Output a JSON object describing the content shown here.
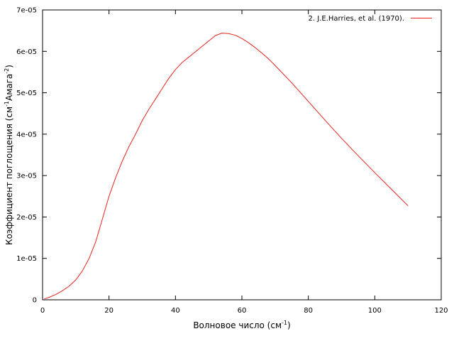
{
  "chart_data": {
    "type": "line",
    "xlabel": {
      "main": "Волновое число (см",
      "sup": "-1",
      "tail": ")"
    },
    "ylabel": {
      "main": "Коэффициент поглощения (см",
      "sup1": "-1",
      "mid": "Амага",
      "sup2": "-2",
      "tail": ")"
    },
    "xlim": [
      0,
      120
    ],
    "ylim": [
      0,
      7e-05
    ],
    "x_ticks": [
      0,
      20,
      40,
      60,
      80,
      100,
      120
    ],
    "y_ticks": [
      0,
      1e-05,
      2e-05,
      3e-05,
      4e-05,
      5e-05,
      6e-05,
      7e-05
    ],
    "x_tick_labels": [
      "0",
      "20",
      "40",
      "60",
      "80",
      "100",
      "120"
    ],
    "y_tick_labels": [
      "0",
      "1e-05",
      "2e-05",
      "3e-05",
      "4e-05",
      "5e-05",
      "6e-05",
      "7e-05"
    ],
    "grid": false,
    "legend_position": "top-right",
    "series": [
      {
        "name": "2. J.E.Harries, et al. (1970).",
        "color": "#e8251e",
        "x": [
          0.5,
          2,
          4,
          6,
          8,
          10,
          12,
          14,
          16,
          18,
          20,
          22,
          24,
          26,
          28,
          30,
          32,
          34,
          36,
          38,
          40,
          42,
          44,
          46,
          48,
          50,
          52,
          54,
          56,
          58,
          60,
          62,
          64,
          66,
          68,
          70,
          72,
          75,
          80,
          85,
          90,
          95,
          100,
          105,
          110
        ],
        "y": [
          2e-07,
          6e-07,
          1.3e-06,
          2.2e-06,
          3.3e-06,
          4.8e-06,
          7e-06,
          1e-05,
          1.4e-05,
          1.95e-05,
          2.5e-05,
          2.95e-05,
          3.35e-05,
          3.7e-05,
          4e-05,
          4.33e-05,
          4.6e-05,
          4.85e-05,
          5.1e-05,
          5.35e-05,
          5.56e-05,
          5.73e-05,
          5.86e-05,
          5.99e-05,
          6.12e-05,
          6.25e-05,
          6.38e-05,
          6.44e-05,
          6.43e-05,
          6.39e-05,
          6.31e-05,
          6.21e-05,
          6.09e-05,
          5.96e-05,
          5.82e-05,
          5.66e-05,
          5.49e-05,
          5.24e-05,
          4.79e-05,
          4.34e-05,
          3.9e-05,
          3.48e-05,
          3.07e-05,
          2.67e-05,
          2.27e-05
        ]
      }
    ]
  }
}
